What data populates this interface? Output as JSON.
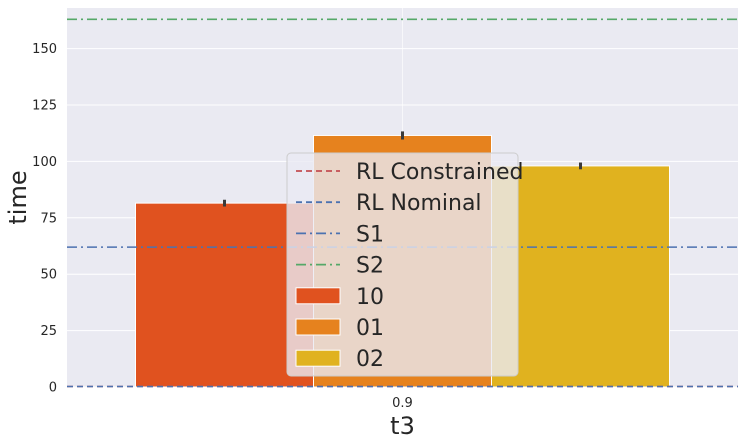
{
  "chart_data": {
    "type": "bar",
    "xlabel": "t3",
    "ylabel": "time",
    "categories": [
      "0.9"
    ],
    "ylim": [
      0,
      168
    ],
    "yticks": [
      0,
      25,
      50,
      75,
      100,
      125,
      150
    ],
    "grid": true,
    "background": "#eaeaf2",
    "series": [
      {
        "name": "10",
        "values": [
          81.5
        ],
        "error": [
          1.5
        ],
        "color": "#e0521f"
      },
      {
        "name": "01",
        "values": [
          111.5
        ],
        "error": [
          1.8
        ],
        "color": "#e6821e"
      },
      {
        "name": "02",
        "values": [
          98.0
        ],
        "error": [
          1.5
        ],
        "color": "#e0b21f"
      }
    ],
    "reference_lines": [
      {
        "name": "RL Constrained",
        "y": 0,
        "style": "dashed",
        "color": "#c44e52"
      },
      {
        "name": "RL Nominal",
        "y": 0,
        "style": "dashed",
        "color": "#4c72b0"
      },
      {
        "name": "S1",
        "y": 62,
        "style": "dashdot",
        "color": "#4c72b0"
      },
      {
        "name": "S2",
        "y": 163,
        "style": "dashdot",
        "color": "#55a868"
      }
    ],
    "legend": {
      "placement": "center",
      "entries": [
        "RL Constrained",
        "RL Nominal",
        "S1",
        "S2",
        "10",
        "01",
        "02"
      ]
    }
  }
}
